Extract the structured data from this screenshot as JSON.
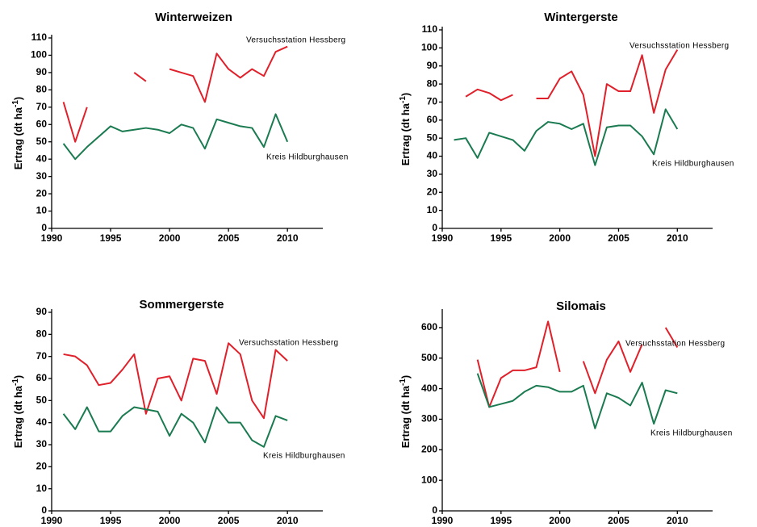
{
  "chart_data": [
    {
      "type": "line",
      "title": "Winterweizen",
      "ylabel": {
        "text": "Ertrag (dt ha",
        "sup": "-1",
        "close": ")"
      },
      "x": [
        1991,
        1992,
        1993,
        1994,
        1995,
        1996,
        1997,
        1998,
        1999,
        2000,
        2001,
        2002,
        2003,
        2004,
        2005,
        2006,
        2007,
        2008,
        2009,
        2010
      ],
      "series": [
        {
          "name": "Versuchsstation Hessberg",
          "color": "#e0202a",
          "values": [
            73,
            50,
            70,
            null,
            null,
            null,
            90,
            85,
            null,
            92,
            90,
            88,
            73,
            101,
            92,
            87,
            92,
            88,
            102,
            105
          ]
        },
        {
          "name": "Kreis Hildburghausen",
          "color": "#1a7a50",
          "values": [
            49,
            40,
            47,
            53,
            59,
            56,
            57,
            58,
            57,
            55,
            60,
            58,
            46,
            63,
            61,
            59,
            58,
            47,
            66,
            50
          ]
        }
      ],
      "xlim": [
        1990,
        2013
      ],
      "xticks": [
        1990,
        1995,
        2000,
        2005,
        2010
      ],
      "ylim": [
        0,
        110
      ],
      "yticks": [
        0,
        10,
        20,
        30,
        40,
        50,
        60,
        70,
        80,
        90,
        100,
        110
      ]
    },
    {
      "type": "line",
      "title": "Wintergerste",
      "ylabel": {
        "text": "Ertrag (dt ha",
        "sup": "-1",
        "close": ")"
      },
      "x": [
        1991,
        1992,
        1993,
        1994,
        1995,
        1996,
        1997,
        1998,
        1999,
        2000,
        2001,
        2002,
        2003,
        2004,
        2005,
        2006,
        2007,
        2008,
        2009,
        2010
      ],
      "series": [
        {
          "name": "Versuchsstation Hessberg",
          "color": "#e0202a",
          "values": [
            null,
            73,
            77,
            75,
            71,
            74,
            null,
            72,
            72,
            83,
            87,
            74,
            40,
            80,
            76,
            76,
            96,
            64,
            88,
            99
          ]
        },
        {
          "name": "Kreis Hildburghausen",
          "color": "#1a7a50",
          "values": [
            49,
            50,
            39,
            53,
            51,
            49,
            43,
            54,
            59,
            58,
            55,
            58,
            35,
            56,
            57,
            57,
            51,
            41,
            66,
            55
          ]
        }
      ],
      "xlim": [
        1990,
        2013
      ],
      "xticks": [
        1990,
        1995,
        2000,
        2005,
        2010
      ],
      "ylim": [
        0,
        110
      ],
      "yticks": [
        0,
        10,
        20,
        30,
        40,
        50,
        60,
        70,
        80,
        90,
        100,
        110
      ]
    },
    {
      "type": "line",
      "title": "Sommergerste",
      "ylabel": {
        "text": "Ertrag (dt ha",
        "sup": "-1",
        "close": ")"
      },
      "x": [
        1991,
        1992,
        1993,
        1994,
        1995,
        1996,
        1997,
        1998,
        1999,
        2000,
        2001,
        2002,
        2003,
        2004,
        2005,
        2006,
        2007,
        2008,
        2009,
        2010
      ],
      "series": [
        {
          "name": "Versuchsstation Hessberg",
          "color": "#e0202a",
          "values": [
            71,
            70,
            66,
            57,
            58,
            64,
            71,
            44,
            60,
            61,
            50,
            69,
            68,
            53,
            76,
            71,
            50,
            42,
            73,
            68
          ]
        },
        {
          "name": "Kreis Hildburghausen",
          "color": "#1a7a50",
          "values": [
            44,
            37,
            47,
            36,
            36,
            43,
            47,
            46,
            45,
            34,
            44,
            40,
            31,
            47,
            40,
            40,
            32,
            29,
            43,
            41
          ]
        }
      ],
      "xlim": [
        1990,
        2013
      ],
      "xticks": [
        1990,
        1995,
        2000,
        2005,
        2010
      ],
      "ylim": [
        0,
        90
      ],
      "yticks": [
        0,
        10,
        20,
        30,
        40,
        50,
        60,
        70,
        80,
        90
      ]
    },
    {
      "type": "line",
      "title": "Silomais",
      "ylabel": {
        "text": "Ertrag (dt ha",
        "sup": "-1",
        "close": ")"
      },
      "x": [
        1991,
        1992,
        1993,
        1994,
        1995,
        1996,
        1997,
        1998,
        1999,
        2000,
        2001,
        2002,
        2003,
        2004,
        2005,
        2006,
        2007,
        2008,
        2009,
        2010
      ],
      "series": [
        {
          "name": "Versuchsstation Hessberg",
          "color": "#e0202a",
          "values": [
            null,
            null,
            495,
            340,
            435,
            460,
            460,
            470,
            620,
            455,
            null,
            490,
            385,
            495,
            555,
            455,
            545,
            null,
            600,
            535
          ]
        },
        {
          "name": "Kreis Hildburghausen",
          "color": "#1a7a50",
          "values": [
            null,
            null,
            450,
            340,
            350,
            360,
            390,
            410,
            405,
            390,
            390,
            410,
            270,
            385,
            370,
            345,
            420,
            285,
            395,
            385
          ]
        }
      ],
      "xlim": [
        1990,
        2013
      ],
      "xticks": [
        1990,
        1995,
        2000,
        2005,
        2010
      ],
      "ylim": [
        0,
        650
      ],
      "yticks": [
        0,
        100,
        200,
        300,
        400,
        500,
        600
      ]
    }
  ]
}
